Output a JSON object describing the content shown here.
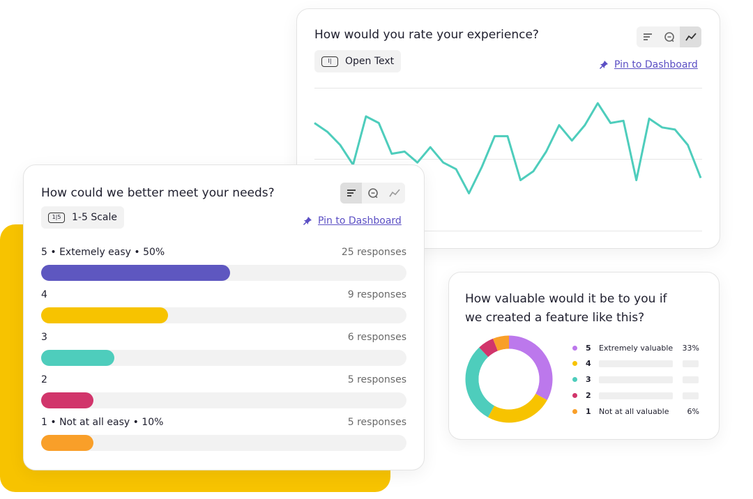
{
  "colors": {
    "accent_yellow": "#f7c300",
    "line_teal": "#4ecdbc",
    "link_purple": "#5b4fc4",
    "bar_5": "#5e57c0",
    "bar_4": "#f7c300",
    "bar_3": "#4ecdbc",
    "bar_2": "#d1356b",
    "bar_1": "#f99f29",
    "donut_5": "#bc78ec",
    "donut_4": "#f7c300",
    "donut_3": "#4ecdbc",
    "donut_2": "#d1356b",
    "donut_1": "#f99f29"
  },
  "experience_card": {
    "title": "How would you rate your experience?",
    "type_label": "Open Text",
    "type_icon": "text-field-icon",
    "pin_label": "Pin to Dashboard",
    "view_icons": [
      "bars-view-icon",
      "comment-view-icon",
      "trend-view-icon"
    ],
    "active_view": "trend-view-icon"
  },
  "needs_card": {
    "title": "How could we better meet your needs?",
    "type_label": "1-5 Scale",
    "type_icon_text": "1|5",
    "pin_label": "Pin to Dashboard",
    "view_icons": [
      "bars-view-icon",
      "comment-view-icon",
      "trend-view-icon"
    ],
    "active_view": "bars-view-icon",
    "rows": [
      {
        "label": "5 • Extemely easy • 50%",
        "responses": "25 responses",
        "fill": 0.517
      },
      {
        "label": "4",
        "responses": "9 responses",
        "fill": 0.347
      },
      {
        "label": "3",
        "responses": "6 responses",
        "fill": 0.2
      },
      {
        "label": "2",
        "responses": "5 responses",
        "fill": 0.143
      },
      {
        "label": "1 • Not at all easy • 10%",
        "responses": "5 responses",
        "fill": 0.143
      }
    ]
  },
  "value_card": {
    "title_line1": "How valuable would it be to you if",
    "title_line2": "we created a feature like this?",
    "legend": [
      {
        "num": "5",
        "text": "Extremely valuable",
        "pct": "33%"
      },
      {
        "num": "4",
        "text": "",
        "pct": ""
      },
      {
        "num": "3",
        "text": "",
        "pct": ""
      },
      {
        "num": "2",
        "text": "",
        "pct": ""
      },
      {
        "num": "1",
        "text": "Not at all valuable",
        "pct": "6%"
      }
    ],
    "segments": [
      0.33,
      0.25,
      0.3,
      0.06,
      0.06
    ]
  },
  "chart_data": {
    "type": "line",
    "values": [
      64,
      60,
      54,
      45,
      67,
      64,
      50,
      51,
      46,
      53,
      46,
      43,
      32,
      44,
      58,
      58,
      38,
      42,
      51,
      63,
      56,
      63,
      73,
      64,
      65,
      38,
      66,
      62,
      61,
      54,
      39
    ],
    "ylim": [
      15,
      80
    ],
    "grid": true
  }
}
